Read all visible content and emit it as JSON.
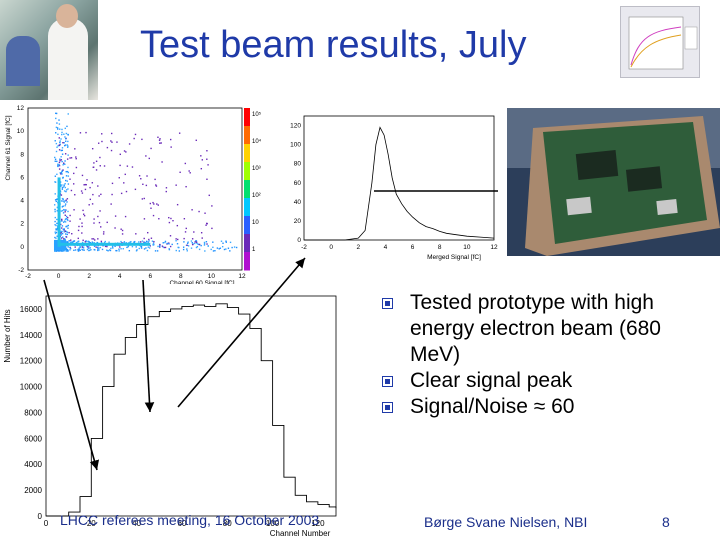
{
  "slide": {
    "title": "Test beam results, July",
    "bullets": [
      "Tested prototype with high energy electron beam (680 MeV)",
      "Clear signal peak",
      "Signal/Noise ≈ 60"
    ],
    "footer_left": "LHCC referees meeting, 16 October 2003",
    "footer_center": "Børge Svane Nielsen, NBI",
    "page_number": "8"
  },
  "colors": {
    "title": "#1f3aa8",
    "bullet_marker": "#1f3aa8",
    "footer": "#1a2e8a"
  },
  "images": {
    "lab_photo": "photo of researchers at a lab bench",
    "board_photo": "photo of a prototype detector readout board",
    "thumbnail_plot": "small plot with rising curves"
  },
  "chart_data": [
    {
      "type": "heatmap",
      "xlabel": "Channel 60 Signal [fC]",
      "ylabel": "Channel 61 Signal [fC]",
      "x_ticks": [
        "-2",
        "0",
        "2",
        "4",
        "6",
        "8",
        "10",
        "12"
      ],
      "y_ticks": [
        "-2",
        "0",
        "2",
        "4",
        "6",
        "8",
        "10",
        "12"
      ],
      "xlim": [
        -2,
        12
      ],
      "ylim": [
        -2,
        12
      ],
      "z_scale": "log",
      "z_ticks": [
        "1",
        "10",
        "10²",
        "10³",
        "10⁴",
        "10⁵"
      ],
      "description_points": [
        {
          "x": 0.2,
          "y": 0.1,
          "density": "very high"
        },
        {
          "x": 0.2,
          "y": 6,
          "density": "medium"
        },
        {
          "x": 6,
          "y": 0.2,
          "density": "medium"
        },
        {
          "x": 3,
          "y": 3,
          "density": "low"
        }
      ]
    },
    {
      "type": "line",
      "xlabel": "Merged Signal [fC]",
      "ylabel": "",
      "x_ticks": [
        "-2",
        "0",
        "2",
        "4",
        "6",
        "8",
        "10",
        "12"
      ],
      "y_ticks": [
        "0",
        "20",
        "40",
        "60",
        "80",
        "100",
        "120"
      ],
      "xlim": [
        -2,
        12
      ],
      "ylim": [
        0,
        130
      ],
      "x": [
        -2,
        0,
        1,
        2,
        2.5,
        3,
        3.3,
        3.6,
        3.9,
        4.2,
        4.5,
        4.8,
        5.2,
        5.6,
        6,
        6.5,
        7,
        7.5,
        8,
        8.5,
        9,
        10,
        11,
        12
      ],
      "y": [
        0,
        0,
        0,
        2,
        10,
        60,
        100,
        118,
        110,
        90,
        65,
        48,
        38,
        30,
        24,
        18,
        14,
        12,
        9,
        7,
        6,
        4,
        3,
        2
      ]
    },
    {
      "type": "line",
      "xlabel": "Channel Number",
      "ylabel": "Number of Hits",
      "x_ticks": [
        "0",
        "20",
        "40",
        "60",
        "80",
        "100",
        "120"
      ],
      "y_ticks": [
        "0",
        "2000",
        "4000",
        "6000",
        "8000",
        "10000",
        "12000",
        "14000",
        "16000"
      ],
      "xlim": [
        0,
        128
      ],
      "ylim": [
        0,
        17000
      ],
      "x": [
        0,
        5,
        10,
        15,
        20,
        25,
        30,
        35,
        40,
        45,
        50,
        55,
        60,
        65,
        70,
        75,
        80,
        85,
        90,
        95,
        100,
        105,
        110,
        115,
        120,
        125,
        128
      ],
      "y": [
        0,
        0,
        300,
        1500,
        6000,
        10000,
        12500,
        13800,
        14800,
        15400,
        15800,
        16000,
        16200,
        16300,
        16200,
        16400,
        16100,
        15600,
        14500,
        12000,
        7000,
        3000,
        1600,
        1100,
        900,
        700,
        600
      ]
    }
  ]
}
